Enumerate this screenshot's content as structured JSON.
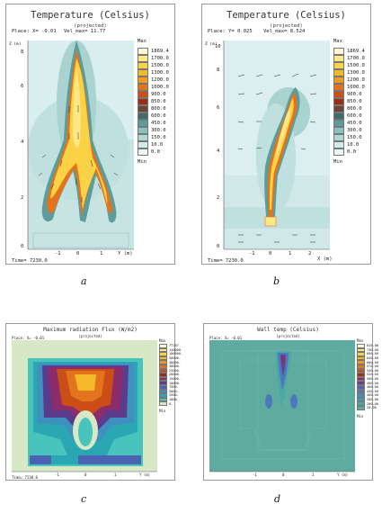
{
  "panels": [
    {
      "id": "a",
      "title": "Temperature (Celsius)",
      "subtitle": "(projected)",
      "place": "Place: X= -0.01",
      "velmax": "Vel_max= 11.77",
      "time": "Time=   7230.0",
      "max_label": "Max",
      "min_label": "Min",
      "legend_values": [
        "1869.4",
        "1700.0",
        "1500.0",
        "1300.0",
        "1200.0",
        "1000.0",
        "900.0",
        "850.0",
        "800.0",
        "600.0",
        "450.0",
        "300.0",
        "150.0",
        "10.0",
        "0.0"
      ],
      "legend_colors": [
        "#fff6d6",
        "#fde888",
        "#f9d245",
        "#f5b82b",
        "#ef9a22",
        "#e3731c",
        "#cc4e17",
        "#9c2e14",
        "#6e4636",
        "#3f6e6a",
        "#5b9d9a",
        "#86c1bd",
        "#afd8d5",
        "#d2ebea",
        "#eaf6f6"
      ],
      "x_ticks": [
        "-1",
        "0",
        "1"
      ],
      "x_axis": "Y (m)",
      "y_axis": "Z (m)",
      "y_ticks": [
        "0",
        "2",
        "4",
        "6",
        "8"
      ],
      "caption": "a"
    },
    {
      "id": "b",
      "title": "Temperature (Celsius)",
      "subtitle": "(projected)",
      "place": "Place: Y= 0.025",
      "velmax": "Vel_max= 8.524",
      "time": "Time=   7230.0",
      "max_label": "Max",
      "min_label": "Min",
      "legend_values": [
        "1869.4",
        "1700.0",
        "1500.0",
        "1300.0",
        "1200.0",
        "1000.0",
        "900.0",
        "850.0",
        "800.0",
        "600.0",
        "450.0",
        "300.0",
        "150.0",
        "10.0",
        "0.0"
      ],
      "legend_colors": [
        "#fff6d6",
        "#fde888",
        "#f9d245",
        "#f5b82b",
        "#ef9a22",
        "#e3731c",
        "#cc4e17",
        "#9c2e14",
        "#6e4636",
        "#3f6e6a",
        "#5b9d9a",
        "#86c1bd",
        "#afd8d5",
        "#d2ebea",
        "#eaf6f6"
      ],
      "x_ticks": [
        "-1",
        "0",
        "1",
        "2"
      ],
      "x_axis": "X (m)",
      "y_axis": "Z (m)",
      "y_ticks": [
        "0",
        "2",
        "4",
        "6",
        "8",
        "10"
      ],
      "caption": "b"
    },
    {
      "id": "c",
      "title": "Maximum radiation Flux (W/m2)",
      "subtitle": "(projected)",
      "place": "Place: X= -0.01",
      "time": "Time=   7230.0",
      "max_label": "Max",
      "min_label": "Min",
      "legend_values": [
        "77187.",
        "140000.",
        "100000.",
        "50000.",
        "40000.",
        "30000.",
        "25000.",
        "20000.",
        "15000.",
        "10000.",
        "7500.",
        "5000.",
        "2500.",
        "1000.",
        "0."
      ],
      "legend_colors": [
        "#fff6d6",
        "#fde888",
        "#f9d245",
        "#f5b82b",
        "#ef9a22",
        "#e3731c",
        "#cc4e17",
        "#9c2e14",
        "#8c2c6a",
        "#5b3b8c",
        "#4a63b4",
        "#3f8fbf",
        "#2aa7b3",
        "#48c4bc",
        "#d6e8c6"
      ],
      "x_ticks": [
        "-1",
        "0",
        "1"
      ],
      "x_axis": "Y (m)",
      "caption": "c"
    },
    {
      "id": "d",
      "title": "Wall temp (Celsius)",
      "subtitle": "(projected)",
      "place": "Place: X= -0.01",
      "time": "Time=   7230.0",
      "max_label": "Max",
      "min_label": "Min",
      "legend_values": [
        "828.00",
        "740.00",
        "690.00",
        "640.00",
        "600.00",
        "570.00",
        "540.00",
        "520.00",
        "500.00",
        "480.00",
        "460.00",
        "440.00",
        "400.00",
        "300.00",
        "200.00",
        "20.00"
      ],
      "legend_colors": [
        "#fff6d6",
        "#fde888",
        "#f9d245",
        "#f5b82b",
        "#ef9a22",
        "#e3731c",
        "#cc4e17",
        "#9c2e14",
        "#8c2c6a",
        "#6b3f8c",
        "#5a5fae",
        "#4b78bf",
        "#3f90c0",
        "#3aa2b7",
        "#4aa8a6",
        "#60aba0"
      ],
      "x_ticks": [
        "-1",
        "0",
        "1"
      ],
      "x_axis": "Y (m)",
      "caption": "d"
    }
  ]
}
